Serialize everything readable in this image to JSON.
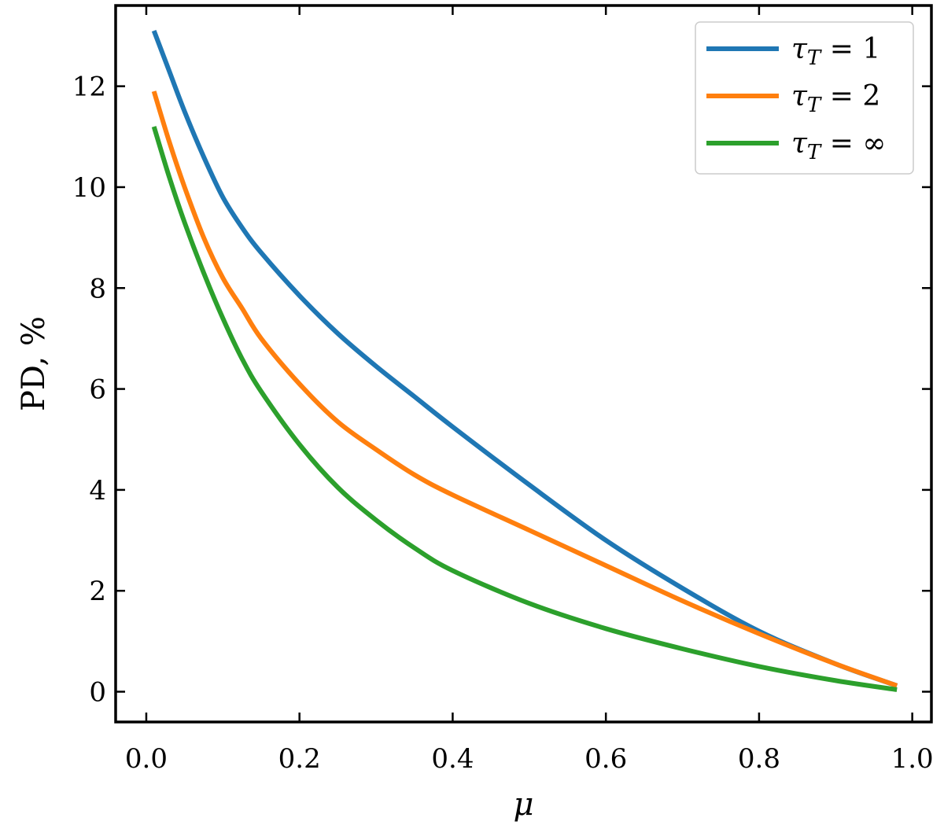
{
  "chart_data": {
    "type": "line",
    "title": "",
    "xlabel": "μ",
    "ylabel": "PD, %",
    "xlim": [
      -0.04,
      1.025
    ],
    "ylim": [
      -0.6,
      13.6
    ],
    "xticks": [
      0.0,
      0.2,
      0.4,
      0.6,
      0.8,
      1.0
    ],
    "xtick_labels": [
      "0.0",
      "0.2",
      "0.4",
      "0.6",
      "0.8",
      "1.0"
    ],
    "yticks": [
      0,
      2,
      4,
      6,
      8,
      10,
      12
    ],
    "ytick_labels": [
      "0",
      "2",
      "4",
      "6",
      "8",
      "10",
      "12"
    ],
    "grid": false,
    "legend_position": "top-right",
    "series": [
      {
        "name": "τT = 1",
        "legend_main": "τ",
        "legend_sub": "T",
        "legend_rest": " = 1",
        "color": "#1f77b4",
        "x": [
          0.01,
          0.03,
          0.05,
          0.075,
          0.1,
          0.125,
          0.15,
          0.2,
          0.25,
          0.3,
          0.35,
          0.4,
          0.5,
          0.6,
          0.7,
          0.8,
          0.9,
          0.98
        ],
        "y": [
          13.1,
          12.3,
          11.5,
          10.6,
          9.8,
          9.2,
          8.7,
          7.85,
          7.1,
          6.45,
          5.85,
          5.25,
          4.1,
          3.0,
          2.05,
          1.2,
          0.55,
          0.12
        ]
      },
      {
        "name": "τT = 2",
        "legend_main": "τ",
        "legend_sub": "T",
        "legend_rest": " = 2",
        "color": "#ff7f0e",
        "x": [
          0.01,
          0.03,
          0.05,
          0.075,
          0.1,
          0.125,
          0.15,
          0.2,
          0.25,
          0.3,
          0.35,
          0.4,
          0.5,
          0.6,
          0.7,
          0.8,
          0.9,
          0.98
        ],
        "y": [
          11.9,
          10.9,
          10.0,
          9.0,
          8.2,
          7.6,
          7.0,
          6.1,
          5.35,
          4.8,
          4.3,
          3.9,
          3.2,
          2.5,
          1.8,
          1.15,
          0.55,
          0.12
        ]
      },
      {
        "name": "τT = ∞",
        "legend_main": "τ",
        "legend_sub": "T",
        "legend_rest": " = ∞",
        "color": "#2ca02c",
        "x": [
          0.01,
          0.03,
          0.05,
          0.075,
          0.1,
          0.125,
          0.15,
          0.2,
          0.25,
          0.3,
          0.35,
          0.4,
          0.5,
          0.6,
          0.7,
          0.8,
          0.9,
          0.98
        ],
        "y": [
          11.2,
          10.2,
          9.3,
          8.3,
          7.4,
          6.6,
          5.95,
          4.9,
          4.05,
          3.4,
          2.85,
          2.4,
          1.75,
          1.25,
          0.85,
          0.5,
          0.22,
          0.04
        ]
      }
    ]
  }
}
